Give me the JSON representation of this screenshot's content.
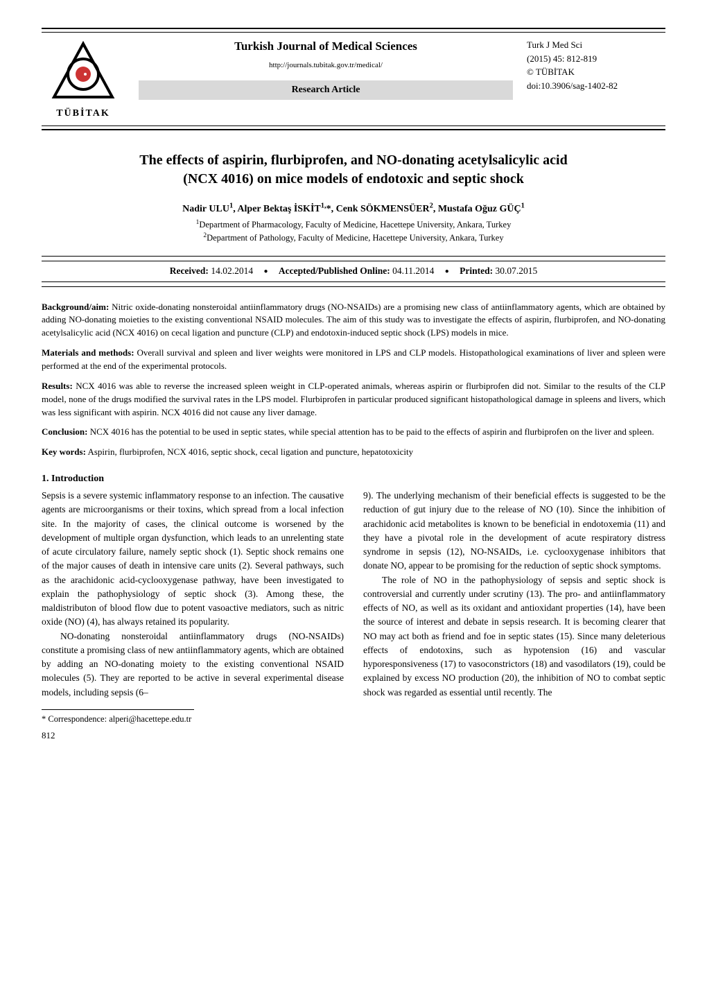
{
  "header": {
    "logo_label": "TÜBİTAK",
    "journal_title": "Turkish Journal of Medical Sciences",
    "journal_url": "http://journals.tubitak.gov.tr/medical/",
    "article_type": "Research Article",
    "citation_line1": "Turk J Med Sci",
    "citation_line2": "(2015) 45: 812-819",
    "citation_line3": "© TÜBİTAK",
    "citation_line4": "doi:10.3906/sag-1402-82"
  },
  "article": {
    "title_line1": "The effects of aspirin, flurbiprofen, and NO-donating acetylsalicylic acid",
    "title_line2": "(NCX 4016) on mice models of endotoxic and septic shock",
    "authors_html": "Nadir ULU<sup>1</sup>, Alper Bektaş İSKİT<sup>1,</sup>*, Cenk SÖKMENSÜER<sup>2</sup>, Mustafa Oğuz GÜÇ<sup>1</sup>",
    "affil1": "Department of Pharmacology, Faculty of Medicine, Hacettepe University, Ankara, Turkey",
    "affil2": "Department of Pathology, Faculty of Medicine, Hacettepe University, Ankara, Turkey"
  },
  "dates": {
    "received_label": "Received:",
    "received_val": " 14.02.2014",
    "accepted_label": "Accepted/Published Online:",
    "accepted_val": " 04.11.2014",
    "printed_label": "Printed:",
    "printed_val": " 30.07.2015"
  },
  "abstract": {
    "bg_label": "Background/aim:",
    "bg_text": " Nitric oxide-donating nonsteroidal antiinflammatory drugs (NO-NSAIDs) are a promising new class of antiinflammatory agents, which are obtained by adding NO-donating moieties to the existing conventional NSAID molecules. The aim of this study was to investigate the effects of aspirin, flurbiprofen, and NO-donating acetylsalicylic acid (NCX 4016) on cecal ligation and puncture (CLP) and endotoxin-induced septic shock (LPS) models in mice.",
    "mm_label": "Materials and methods:",
    "mm_text": " Overall survival and spleen and liver weights were monitored in LPS and CLP models. Histopathological examinations of liver and spleen were performed at the end of the experimental protocols.",
    "res_label": "Results:",
    "res_text": " NCX 4016 was able to reverse the increased spleen weight in CLP-operated animals, whereas aspirin or flurbiprofen did not. Similar to the results of the CLP model, none of the drugs modified the survival rates in the LPS model. Flurbiprofen in particular produced significant histopathological damage in spleens and livers, which was less significant with aspirin. NCX 4016 did not cause any liver damage.",
    "con_label": "Conclusion:",
    "con_text": " NCX 4016 has the potential to be used in septic states, while special attention has to be paid to the effects of aspirin and flurbiprofen on the liver and spleen.",
    "key_label": "Key words:",
    "key_text": " Aspirin, flurbiprofen, NCX 4016, septic shock, cecal ligation and puncture, hepatotoxicity"
  },
  "intro": {
    "heading": "1. Introduction",
    "left_p1": "Sepsis is a severe systemic inflammatory response to an infection. The causative agents are microorganisms or their toxins, which spread from a local infection site. In the majority of cases, the clinical outcome is worsened by the development of multiple organ dysfunction, which leads to an unrelenting state of acute circulatory failure, namely septic shock (1). Septic shock remains one of the major causes of death in intensive care units (2). Several pathways, such as the arachidonic acid-cyclooxygenase pathway, have been investigated to explain the pathophysiology of septic shock (3). Among these, the maldistributon of blood flow due to potent vasoactive mediators, such as nitric oxide (NO) (4), has always retained its popularity.",
    "left_p2": "NO-donating nonsteroidal antiinflammatory drugs (NO-NSAIDs) constitute a promising class of new antiinflammatory agents, which are obtained by adding an NO-donating moiety to the existing conventional NSAID molecules (5). They are reported to be active in several experimental disease models, including sepsis (6–",
    "right_p1": "9). The underlying mechanism of their beneficial effects is suggested to be the reduction of gut injury due to the release of NO (10). Since the inhibition of arachidonic acid metabolites is known to be beneficial in endotoxemia (11) and they have a pivotal role in the development of acute respiratory distress syndrome in sepsis (12), NO-NSAIDs, i.e. cyclooxygenase inhibitors that donate NO, appear to be promising for the reduction of septic shock symptoms.",
    "right_p2": "The role of NO in the pathophysiology of sepsis and septic shock is controversial and currently under scrutiny (13). The pro- and antiinflammatory effects of NO, as well as its oxidant and antioxidant properties (14), have been the source of interest and debate in sepsis research. It is becoming clearer that NO may act both as friend and foe in septic states (15). Since many deleterious effects of endotoxins, such as hypotension (16) and vascular hyporesponsiveness (17) to vasoconstrictors (18) and vasodilators (19), could be explained by excess NO production (20), the inhibition of NO to combat septic shock was regarded as essential until recently. The"
  },
  "footer": {
    "correspondence": "* Correspondence: alperi@hacettepe.edu.tr",
    "page_num": "812"
  },
  "colors": {
    "rule": "#000000",
    "article_type_bg": "#d9d9d9",
    "logo_fill": "#000000",
    "logo_accent": "#cc3333"
  }
}
